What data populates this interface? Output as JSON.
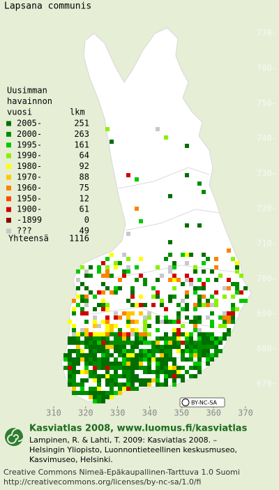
{
  "title": "Lapsana communis",
  "legend": {
    "heading": [
      "Uusimman",
      "havainnon",
      "vuosi"
    ],
    "count_heading": "lkm",
    "rows": [
      {
        "label": "2005-",
        "count": 251,
        "color": "#006e00"
      },
      {
        "label": "2000-",
        "count": 263,
        "color": "#008c00"
      },
      {
        "label": "1995-",
        "count": 161,
        "color": "#00c800"
      },
      {
        "label": "1990-",
        "count": 64,
        "color": "#8cf000"
      },
      {
        "label": "1980-",
        "count": 92,
        "color": "#ffff00"
      },
      {
        "label": "1970-",
        "count": 88,
        "color": "#ffc800"
      },
      {
        "label": "1960-",
        "count": 75,
        "color": "#ff8200"
      },
      {
        "label": "1950-",
        "count": 12,
        "color": "#ff4600"
      },
      {
        "label": "1900-",
        "count": 61,
        "color": "#d20000"
      },
      {
        "label": "-1899",
        "count": 0,
        "color": "#8c0000"
      },
      {
        "label": "???",
        "count": 49,
        "color": "#c8c8c8"
      }
    ],
    "total_label": "Yhteensä",
    "total": 1116
  },
  "map": {
    "y_ticks": [
      770,
      760,
      750,
      740,
      730,
      720,
      710,
      700,
      690,
      680,
      670
    ],
    "x_ticks": [
      310,
      320,
      330,
      340,
      350,
      360,
      370
    ],
    "license_badge": "BY-NC-SA"
  },
  "footer": {
    "heading": "Kasviatlas 2008, www.luomus.fi/kasviatlas",
    "citation": [
      "Lampinen, R. & Lahti, T. 2009: Kasviatlas 2008. –",
      "Helsingin Yliopisto, Luonnontieteellinen keskusmuseo,",
      "Kasvimuseo, Helsinki."
    ],
    "license": [
      "Creative Commons Nimeä-Epäkaupallinen-Tarttuva 1.0 Suomi",
      "http://creativecommons.org/licenses/by-nc-sa/1.0/fi"
    ]
  }
}
